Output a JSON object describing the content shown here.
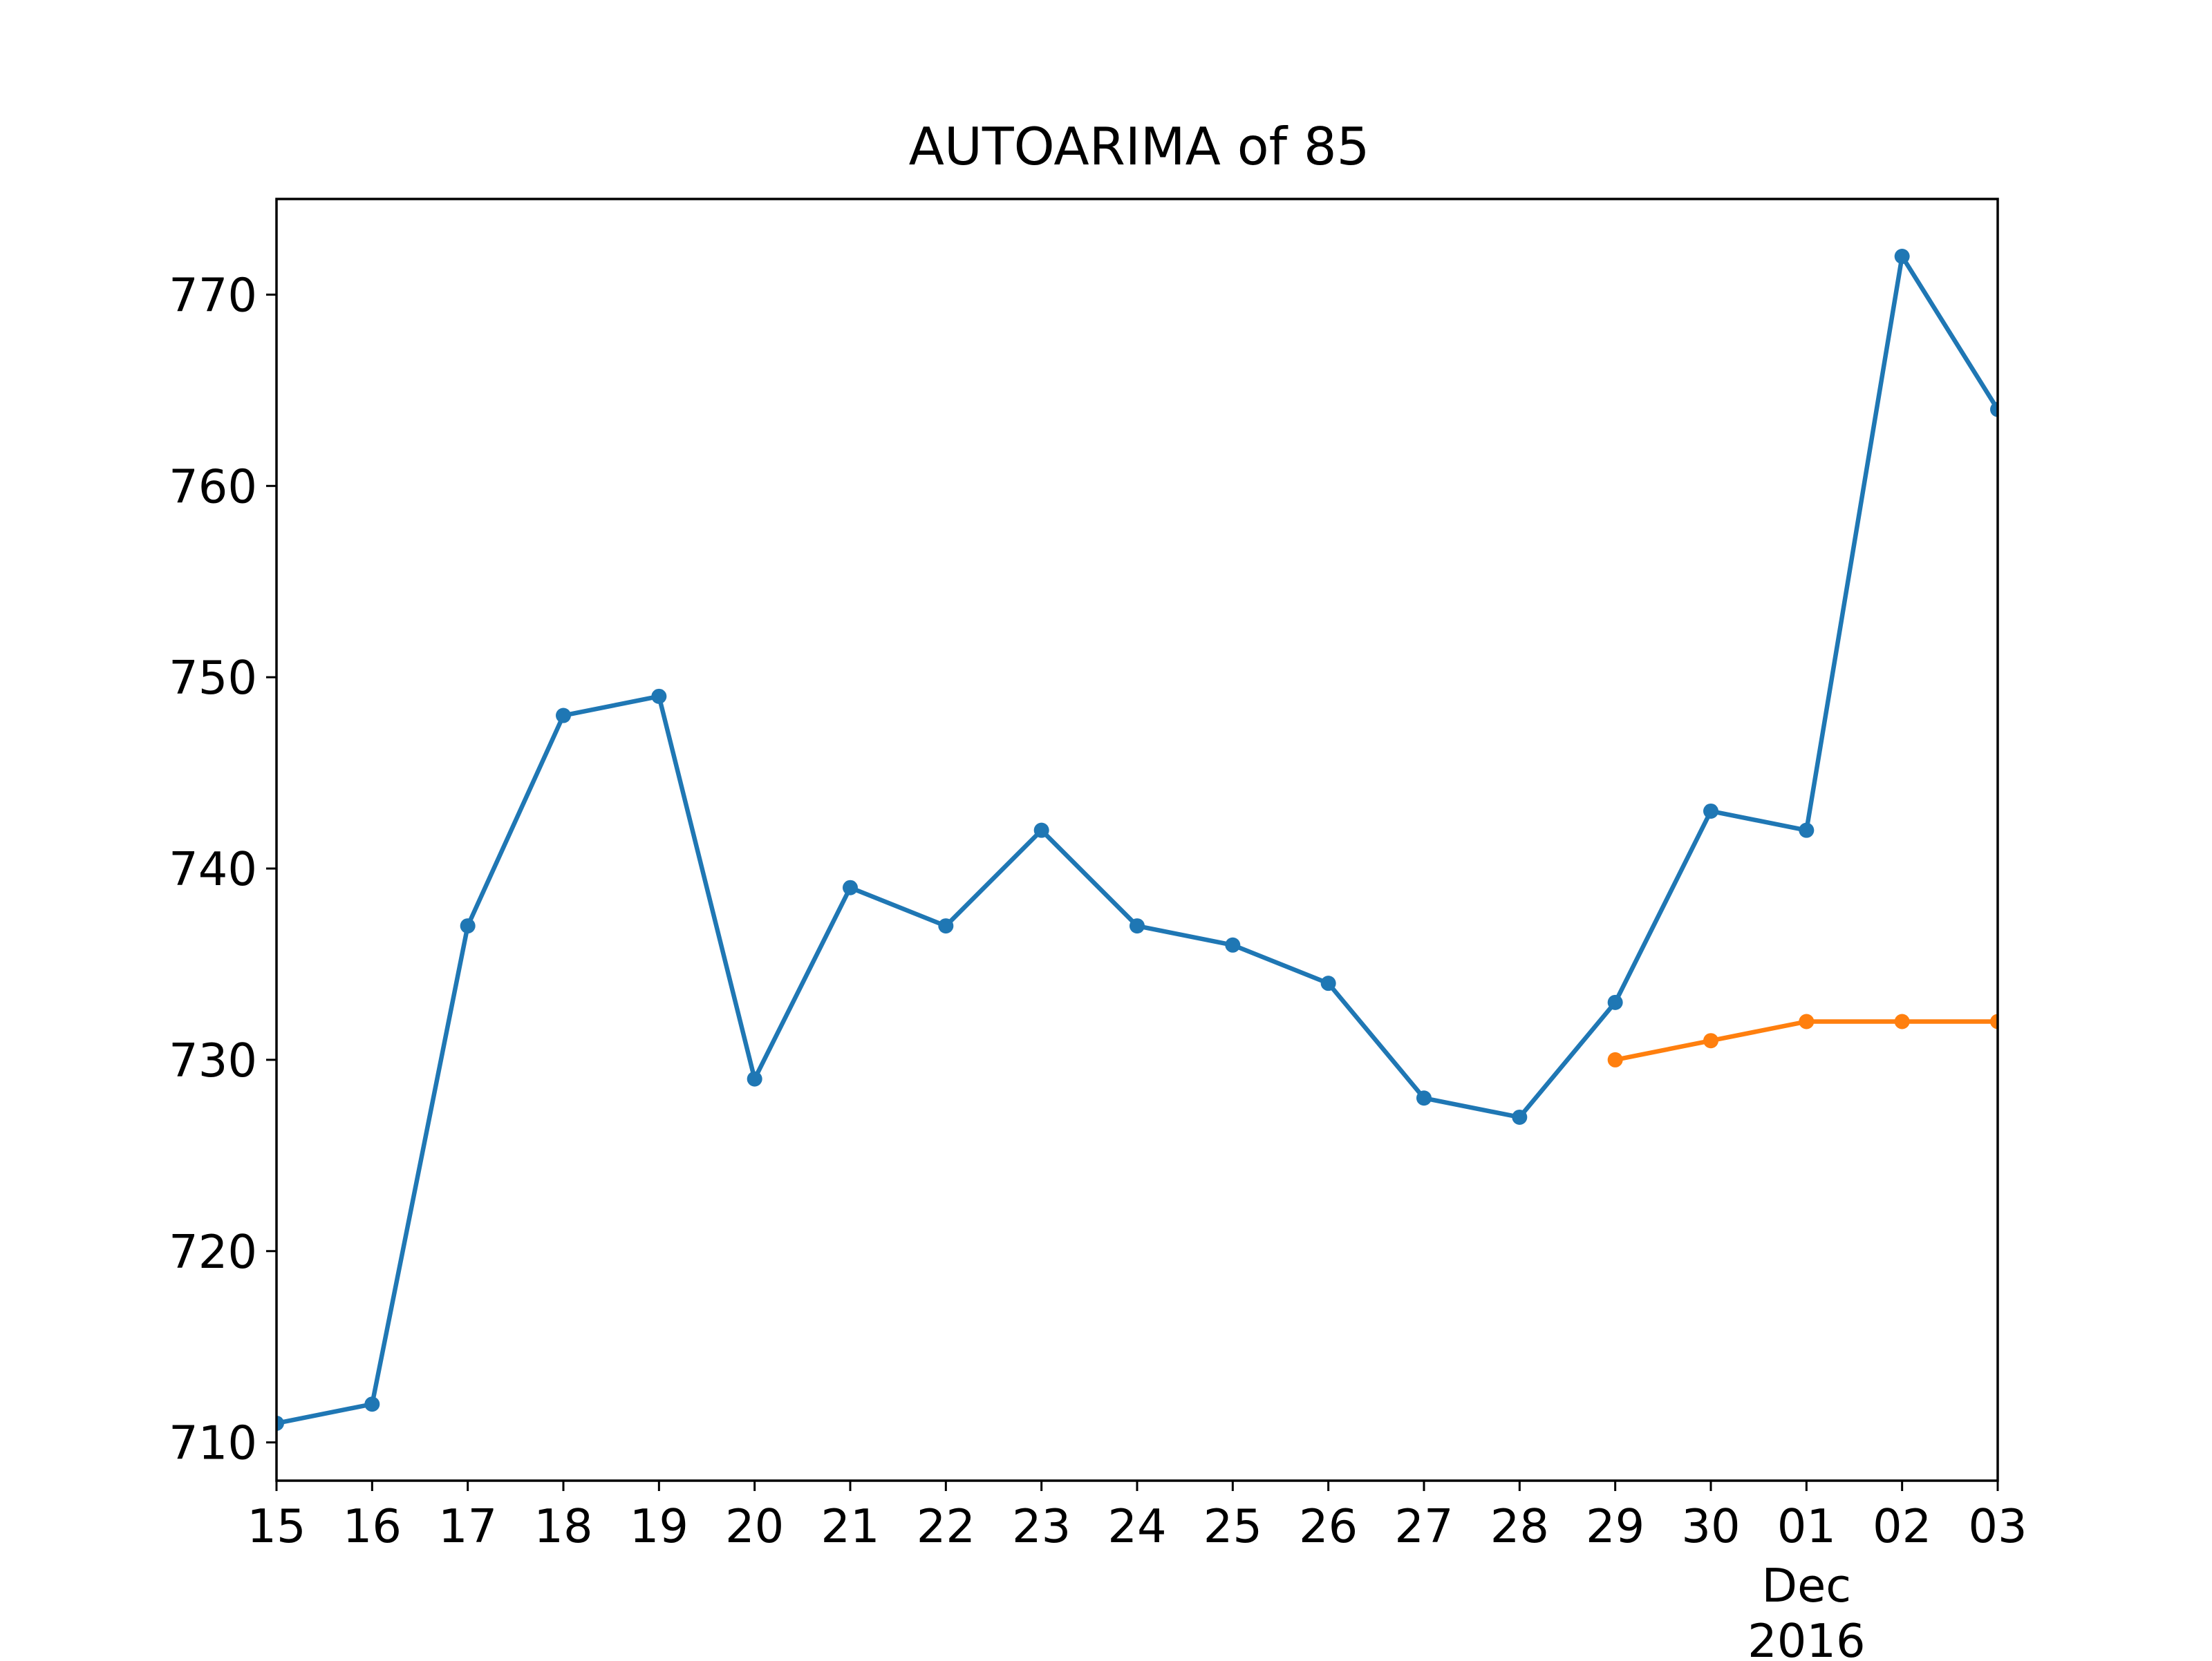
{
  "chart_data": {
    "type": "line",
    "title": "AUTOARIMA of 85",
    "xlabel": "",
    "ylabel": "",
    "x": [
      "2016-11-15",
      "2016-11-16",
      "2016-11-17",
      "2016-11-18",
      "2016-11-19",
      "2016-11-20",
      "2016-11-21",
      "2016-11-22",
      "2016-11-23",
      "2016-11-24",
      "2016-11-25",
      "2016-11-26",
      "2016-11-27",
      "2016-11-28",
      "2016-11-29",
      "2016-11-30",
      "2016-12-01",
      "2016-12-02",
      "2016-12-03"
    ],
    "x_tick_labels": [
      "15",
      "16",
      "17",
      "18",
      "19",
      "20",
      "21",
      "22",
      "23",
      "24",
      "25",
      "26",
      "27",
      "28",
      "29",
      "30",
      "01",
      "02",
      "03"
    ],
    "x_tick_sublabel": {
      "date": "2016-12-01",
      "lines": [
        "Dec",
        "2016"
      ]
    },
    "xlim": [
      "2016-11-15",
      "2016-12-03"
    ],
    "ylim": [
      708,
      775
    ],
    "y_ticks": [
      710,
      720,
      730,
      740,
      750,
      760,
      770
    ],
    "grid": false,
    "legend": null,
    "series": [
      {
        "color": "#1f77b4",
        "x": [
          "2016-11-15",
          "2016-11-16",
          "2016-11-17",
          "2016-11-18",
          "2016-11-19",
          "2016-11-20",
          "2016-11-21",
          "2016-11-22",
          "2016-11-23",
          "2016-11-24",
          "2016-11-25",
          "2016-11-26",
          "2016-11-27",
          "2016-11-28",
          "2016-11-29",
          "2016-11-30",
          "2016-12-01",
          "2016-12-02",
          "2016-12-03"
        ],
        "values": [
          711,
          712,
          737,
          748,
          749,
          729,
          739,
          737,
          742,
          737,
          736,
          734,
          728,
          727,
          733,
          743,
          742,
          772,
          764
        ]
      },
      {
        "color": "#ff7f0e",
        "x": [
          "2016-11-29",
          "2016-11-30",
          "2016-12-01",
          "2016-12-02",
          "2016-12-03"
        ],
        "values": [
          730,
          731,
          732,
          732,
          732
        ]
      }
    ]
  }
}
